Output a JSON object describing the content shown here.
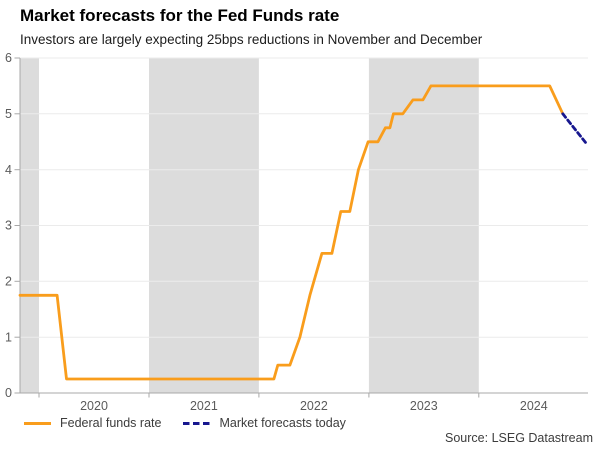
{
  "chart_data": {
    "type": "line",
    "title": "Market forecasts for the Fed Funds rate",
    "subtitle": "Investors are largely expecting 25bps reductions in November and December",
    "source": "Source: LSEG Datastream",
    "xlim": [
      2019.827,
      2024.993
    ],
    "ylim": [
      0,
      6
    ],
    "yticks": [
      0,
      1,
      2,
      3,
      4,
      5,
      6
    ],
    "xticks": [
      2020,
      2021,
      2022,
      2023,
      2024
    ],
    "xtick_labels": [
      "2020",
      "2021",
      "2022",
      "2023",
      "2024"
    ],
    "grid": "horizontal",
    "legend_position": "bottom-left",
    "shaded_bands": [
      [
        2019.827,
        2020
      ],
      [
        2021,
        2022
      ],
      [
        2023,
        2024
      ]
    ],
    "series": [
      {
        "name": "Federal funds rate",
        "color": "#F99D1C",
        "style": "solid",
        "points": [
          [
            2019.827,
            1.75
          ],
          [
            2020.164,
            1.75
          ],
          [
            2020.25,
            0.25
          ],
          [
            2022.136,
            0.25
          ],
          [
            2022.172,
            0.5
          ],
          [
            2022.282,
            0.5
          ],
          [
            2022.373,
            1.0
          ],
          [
            2022.464,
            1.75
          ],
          [
            2022.573,
            2.5
          ],
          [
            2022.664,
            2.5
          ],
          [
            2022.745,
            3.25
          ],
          [
            2022.827,
            3.25
          ],
          [
            2022.905,
            4.0
          ],
          [
            2022.993,
            4.5
          ],
          [
            2023.082,
            4.5
          ],
          [
            2023.15,
            4.75
          ],
          [
            2023.191,
            4.75
          ],
          [
            2023.223,
            5.0
          ],
          [
            2023.309,
            5.0
          ],
          [
            2023.4,
            5.25
          ],
          [
            2023.491,
            5.25
          ],
          [
            2023.564,
            5.5
          ],
          [
            2024.645,
            5.5
          ],
          [
            2024.764,
            5.0
          ]
        ]
      },
      {
        "name": "Market forecasts today",
        "color": "#17178F",
        "style": "dashed",
        "points": [
          [
            2024.764,
            5.0
          ],
          [
            2024.985,
            4.45
          ]
        ]
      }
    ]
  },
  "colors": {
    "band": "#dcdcdc",
    "gridline": "#ebebeb",
    "axis": "#a8a8a8",
    "tick_label": "#5b5b5b"
  }
}
